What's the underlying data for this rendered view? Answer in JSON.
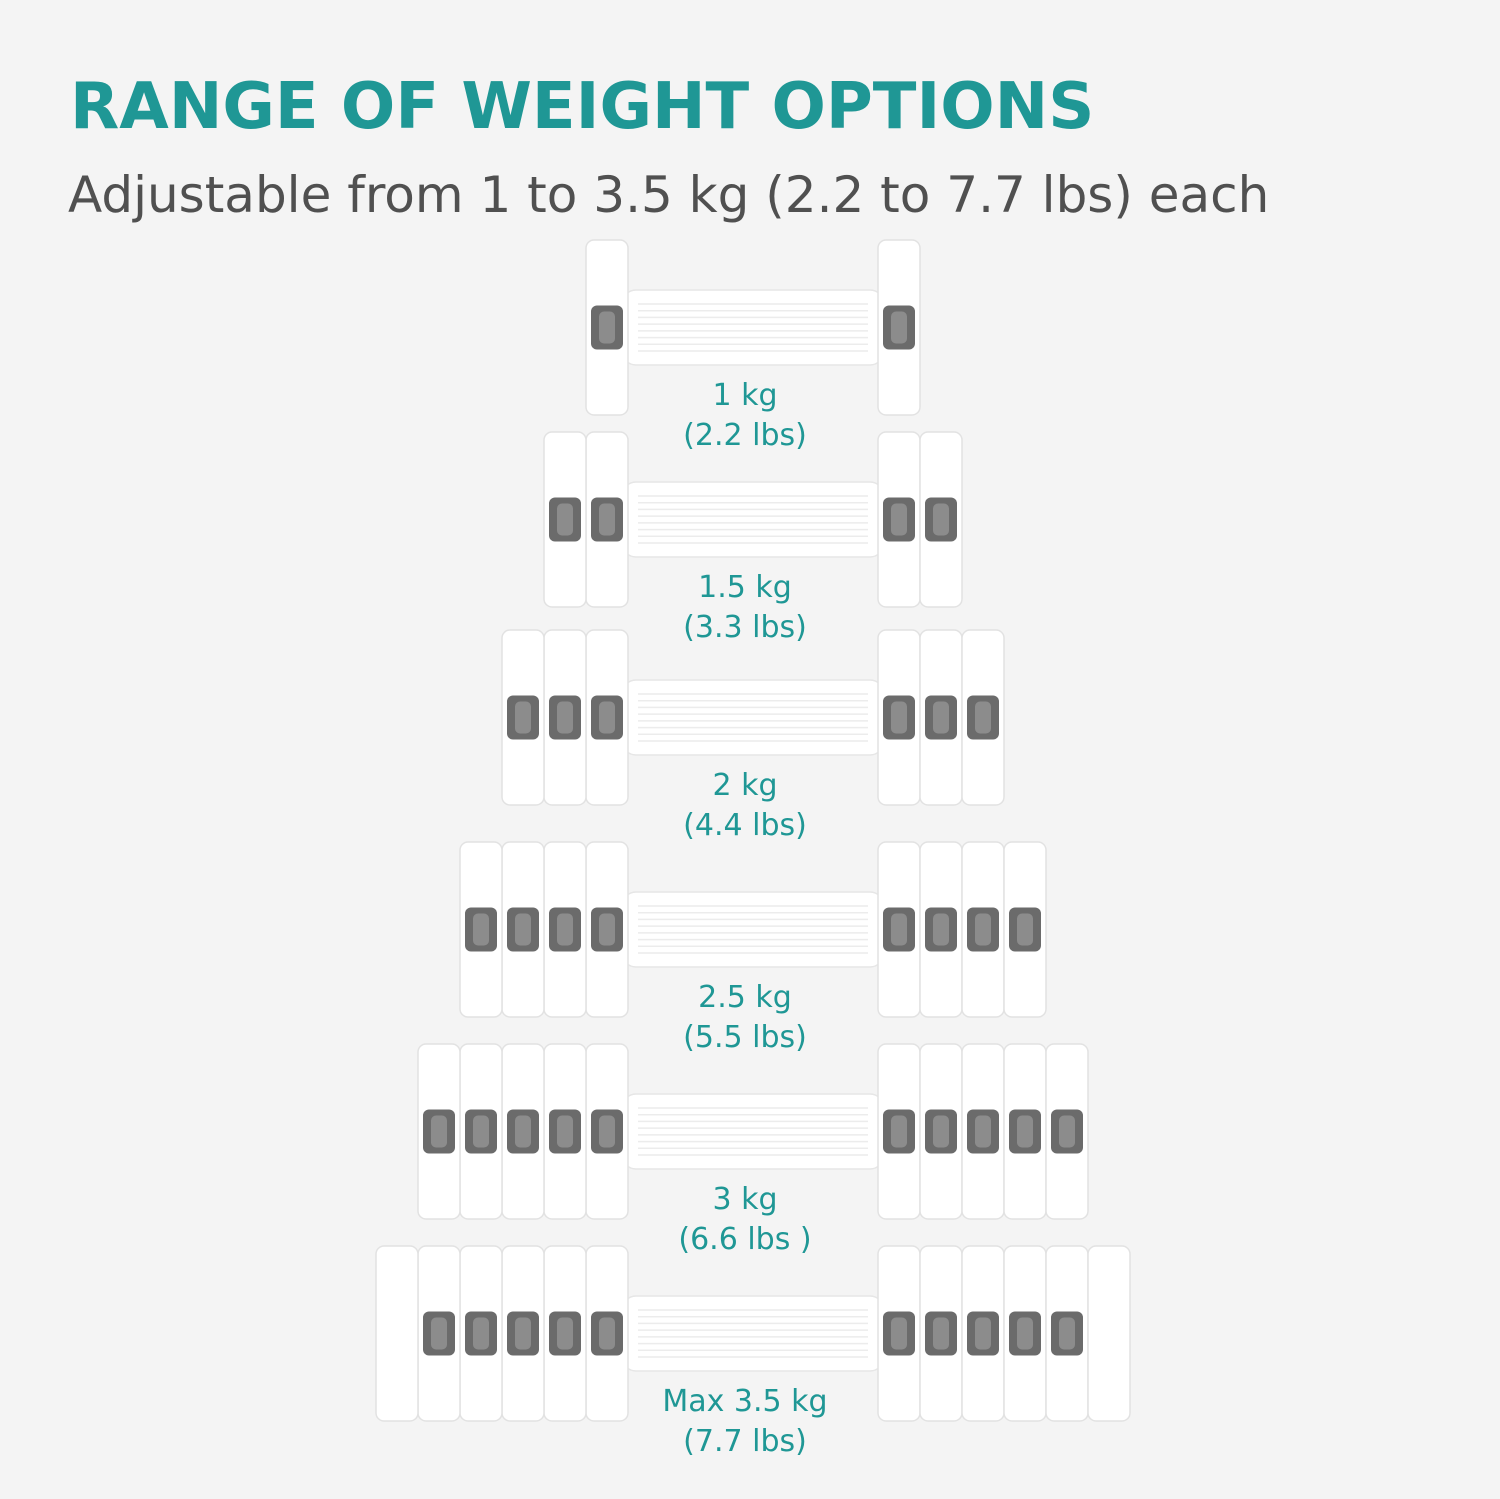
{
  "title": "RANGE OF WEIGHT OPTIONS",
  "subtitle": "Adjustable from 1 to 3.5 kg (2.2 to 7.7 lbs) each",
  "colors": {
    "accent": "#1f9795",
    "background": "#f4f4f4",
    "dumbbell_body": "#ffffff",
    "lock_tab": "#6b6b6b"
  },
  "dumbbells": [
    {
      "plates": 1,
      "kg_label": "1 kg",
      "lbs_label": "(2.2 lbs)"
    },
    {
      "plates": 2,
      "kg_label": "1.5 kg",
      "lbs_label": "(3.3 lbs)"
    },
    {
      "plates": 3,
      "kg_label": "2 kg",
      "lbs_label": "(4.4 lbs)"
    },
    {
      "plates": 4,
      "kg_label": "2.5 kg",
      "lbs_label": "(5.5 lbs)"
    },
    {
      "plates": 5,
      "kg_label": "3 kg",
      "lbs_label": "(6.6 lbs )"
    },
    {
      "plates": 6,
      "kg_label": "Max 3.5 kg",
      "lbs_label": "(7.7 lbs)"
    }
  ]
}
